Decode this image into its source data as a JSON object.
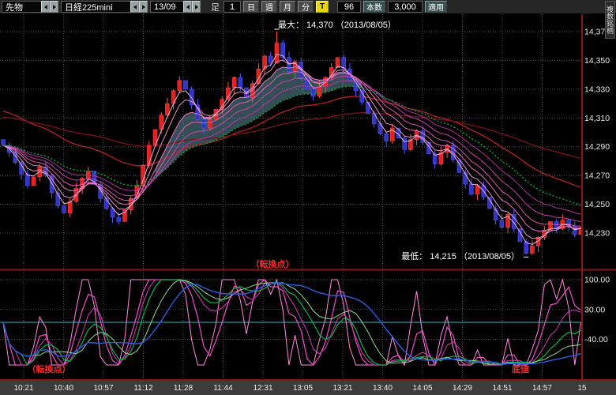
{
  "toolbar": {
    "instrument": "先物",
    "symbol": "日経225mini",
    "contract": "13/09",
    "ashi_label": "足",
    "interval_value": "1",
    "units": [
      "日",
      "週",
      "月",
      "分"
    ],
    "tick_label": "T",
    "bars_value": "96",
    "bars_label": "本数",
    "count_value": "3,000",
    "apply_label": "適用",
    "multi_symbol_label": "複数銘柄"
  },
  "colors": {
    "background": "#000000",
    "grid": "#4a4a4a",
    "frame": "#8a1616",
    "candle_up": "#e62020",
    "candle_up_edge": "#ff5050",
    "candle_down": "#3434c8",
    "candle_down_edge": "#5858ff",
    "ma_green": "#00a83c",
    "ma_long": [
      "#b22222",
      "#7a1414"
    ],
    "ribbon": [
      "#ffc2e8",
      "#ffa2dc",
      "#ff7ed0",
      "#ef5ec4",
      "#d846b8",
      "#c034ac"
    ],
    "cloud": "rgba(160,235,255,0.33)",
    "osc_ref": "#38b6c8",
    "signal_red": "#ff2828",
    "axis_text": "#e6e6e6",
    "time_axis_bg": "#3c3c3c"
  },
  "chart_data": [
    {
      "type": "candlestick",
      "open_first": 14295,
      "close": [
        14291,
        14286,
        14279,
        14271,
        14263,
        14269,
        14276,
        14270,
        14258,
        14249,
        14244,
        14252,
        14261,
        14268,
        14273,
        14264,
        14254,
        14247,
        14241,
        14238,
        14246,
        14254,
        14263,
        14277,
        14291,
        14302,
        14312,
        14320,
        14329,
        14336,
        14330,
        14319,
        14309,
        14303,
        14309,
        14316,
        14323,
        14331,
        14338,
        14331,
        14324,
        14334,
        14344,
        14353,
        14348,
        14362,
        14352,
        14342,
        14349,
        14338,
        14330,
        14325,
        14332,
        14338,
        14345,
        14352,
        14344,
        14336,
        14329,
        14321,
        14313,
        14306,
        14299,
        14294,
        14303,
        14296,
        14288,
        14295,
        14301,
        14293,
        14285,
        14278,
        14286,
        14291,
        14281,
        14272,
        14264,
        14257,
        14263,
        14255,
        14247,
        14239,
        14234,
        14243,
        14233,
        14224,
        14216,
        14221,
        14227,
        14232,
        14238,
        14233,
        14239,
        14235,
        14229,
        14234
      ],
      "ribbon_periods": [
        3,
        5,
        8,
        11,
        15,
        20
      ],
      "green_ma_period": 26,
      "long_ma": [
        {
          "period": 40,
          "seed": 14316
        },
        {
          "period": 90,
          "seed": 14311
        }
      ],
      "price_gridlines": [
        14370,
        14350,
        14330,
        14310,
        14290,
        14270,
        14250,
        14230
      ],
      "price_tick_labels": [
        "14,370",
        "14,350",
        "14,330",
        "14,310",
        "14,290",
        "14,270",
        "14,250",
        "14,230"
      ],
      "ylim": [
        14205,
        14382
      ],
      "x_ticks": [
        "10:21",
        "10:40",
        "10:57",
        "11:12",
        "11:28",
        "11:44",
        "12:31",
        "13:05",
        "13:21",
        "13:40",
        "14:05",
        "14:29",
        "14:51",
        "14:57",
        "15"
      ],
      "max_annotation": {
        "label": "最大： 14,370 （2013/08/05）",
        "value": 14370,
        "bar_index": 45
      },
      "min_annotation": {
        "label": "最低： 14,215 （2013/08/05）",
        "value": 14215,
        "bar_index": 86
      },
      "signal_label": "（転換点）"
    },
    {
      "type": "oscillator",
      "ylim": [
        -115,
        120
      ],
      "y_tick_values": [
        100,
        30,
        -40
      ],
      "y_tick_labels": [
        "100.00",
        "30.00",
        "-40.00"
      ],
      "ref_line": 0,
      "lines": [
        {
          "name": "fast-1",
          "period": 6,
          "smooth": 1,
          "color": "#ff8ce0",
          "width": 1
        },
        {
          "name": "fast-2",
          "period": 9,
          "smooth": 2,
          "color": "#f050c8",
          "width": 1.2
        },
        {
          "name": "fast-3",
          "period": 13,
          "smooth": 3,
          "color": "#d838b8",
          "width": 1
        },
        {
          "name": "mid-1",
          "period": 17,
          "smooth": 4,
          "color": "#00b44c",
          "width": 1.2
        },
        {
          "name": "mid-2",
          "period": 24,
          "smooth": 6,
          "color": "#8cdc8c",
          "width": 1
        },
        {
          "name": "slow-1",
          "period": 36,
          "smooth": 9,
          "color": "#2e5ce0",
          "width": 1.4
        }
      ],
      "signals": [
        {
          "label": "（転換点）",
          "position": "bottom-left"
        },
        {
          "label": "底値",
          "position": "bottom-right"
        }
      ]
    }
  ]
}
